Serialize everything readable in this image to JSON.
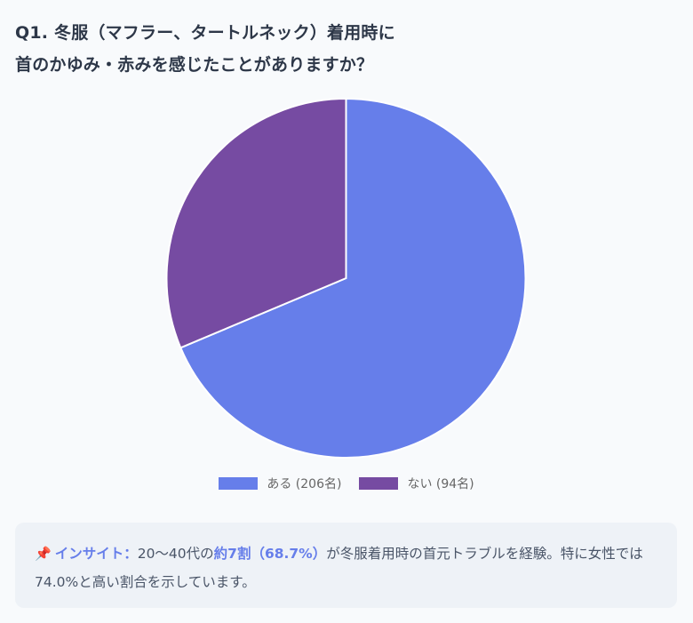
{
  "title": {
    "line1": "Q1. 冬服（マフラー、タートルネック）着用時に",
    "line2": "首のかゆみ・赤みを感じたことがありますか？"
  },
  "chart_data": {
    "type": "pie",
    "title": "Q1. 冬服（マフラー、タートルネック）着用時に首のかゆみ・赤みを感じたことがありますか？",
    "categories": [
      "ある",
      "ない"
    ],
    "values": [
      206,
      94
    ],
    "percentages": [
      68.7,
      31.3
    ],
    "colors": [
      "#667eea",
      "#764ba2"
    ],
    "legend_labels": [
      "ある (206名)",
      "ない (94名)"
    ],
    "legend_position": "bottom",
    "start_angle": "top",
    "direction": "clockwise"
  },
  "legend": {
    "items": [
      {
        "label": "ある (206名)",
        "color": "#667eea"
      },
      {
        "label": "ない (94名)",
        "color": "#764ba2"
      }
    ]
  },
  "insight": {
    "icon": "📌",
    "label": "インサイト：",
    "text_before": "20〜40代の",
    "highlight": "約7割（68.7%）",
    "text_after": "が冬服着用時の首元トラブルを経験。特に女性では74.0%と高い割合を示しています。"
  },
  "colors": {
    "accent": "#667eea",
    "secondary": "#764ba2",
    "background": "#f8fafc",
    "card_background": "#eef2f7",
    "title_text": "#2d3748"
  }
}
